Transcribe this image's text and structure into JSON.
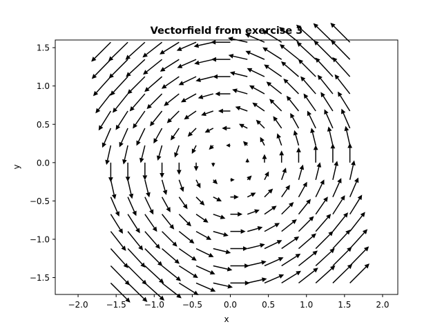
{
  "chart_data": {
    "type": "quiver",
    "title": "Vectorfield from exercise 3",
    "xlabel": "x",
    "ylabel": "y",
    "xlim": [
      -2.3,
      2.2
    ],
    "ylim": [
      -1.72,
      1.6
    ],
    "xticks": [
      -2.0,
      -1.5,
      -1.0,
      -0.5,
      0.0,
      0.5,
      1.0,
      1.5,
      2.0
    ],
    "xtick_labels": [
      "−2.0",
      "−1.5",
      "−1.0",
      "−0.5",
      "0.0",
      "0.5",
      "1.0",
      "1.5",
      "2.0"
    ],
    "yticks": [
      -1.5,
      -1.0,
      -0.5,
      0.0,
      0.5,
      1.0,
      1.5
    ],
    "ytick_labels": [
      "−1.5",
      "−1.0",
      "−0.5",
      "0.0",
      "0.5",
      "1.0",
      "1.5"
    ],
    "grid": false,
    "field": {
      "u": "-sin(y)",
      "v": "sin(x)",
      "x_range": [
        -1.5708,
        1.5708
      ],
      "y_range": [
        -1.5708,
        1.5708
      ],
      "n": 15
    },
    "arrow_color": "#000000"
  }
}
